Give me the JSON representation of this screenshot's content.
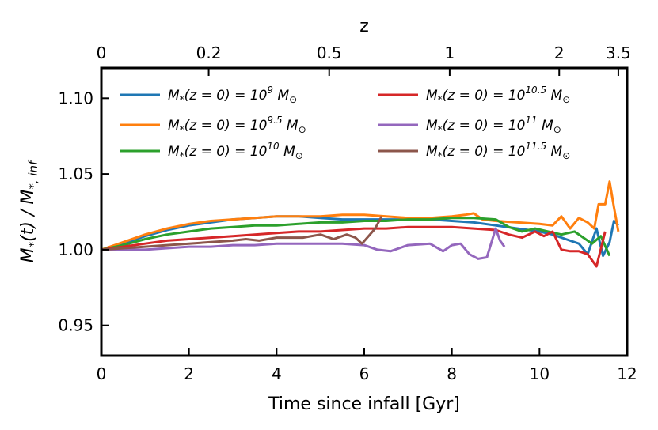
{
  "chart_data": {
    "type": "line",
    "xlabel": "Time since infall [Gyr]",
    "ylabel": "M_*(t) / M_*,inf",
    "top_axis_label": "z",
    "xlim": [
      0,
      12
    ],
    "ylim": [
      0.93,
      1.12
    ],
    "x_ticks": [
      0,
      2,
      4,
      6,
      8,
      10,
      12
    ],
    "x_tick_labels": [
      "0",
      "2",
      "4",
      "6",
      "8",
      "10",
      "12"
    ],
    "y_ticks": [
      0.95,
      1.0,
      1.05,
      1.1
    ],
    "y_tick_labels": [
      "0.95",
      "1.00",
      "1.05",
      "1.10"
    ],
    "top_ticks": [
      {
        "label": "0",
        "t": 0.0
      },
      {
        "label": "0.2",
        "t": 2.45
      },
      {
        "label": "0.5",
        "t": 5.2
      },
      {
        "label": "1",
        "t": 7.95
      },
      {
        "label": "2",
        "t": 10.45
      },
      {
        "label": "3.5",
        "t": 11.8
      }
    ],
    "legend_position": "upper",
    "series": [
      {
        "name": "M*(z=0)=10^9 M☉",
        "legend": {
          "pre": "M",
          "sub": "*",
          "mid": "(z = 0) = 10",
          "exp": "9",
          "post": " M",
          "post_sub": "⊙"
        },
        "color": "#1f77b4",
        "x": [
          0,
          0.5,
          1,
          1.5,
          2,
          2.5,
          3,
          3.5,
          4,
          4.5,
          5,
          5.5,
          6,
          6.5,
          7,
          7.5,
          8,
          8.5,
          9,
          9.5,
          10,
          10.3,
          10.6,
          10.9,
          11.1,
          11.3,
          11.45,
          11.6,
          11.7,
          11.8
        ],
        "y": [
          1.0,
          1.004,
          1.009,
          1.013,
          1.016,
          1.018,
          1.02,
          1.021,
          1.022,
          1.022,
          1.021,
          1.02,
          1.02,
          1.02,
          1.02,
          1.02,
          1.019,
          1.018,
          1.016,
          1.014,
          1.012,
          1.01,
          1.007,
          1.004,
          0.997,
          1.014,
          0.996,
          1.005,
          1.019,
          1.016
        ]
      },
      {
        "name": "M*(z=0)=10^9.5 M☉",
        "legend": {
          "pre": "M",
          "sub": "*",
          "mid": "(z = 0) = 10",
          "exp": "9.5",
          "post": " M",
          "post_sub": "⊙"
        },
        "color": "#ff7f0e",
        "x": [
          0,
          0.5,
          1,
          1.5,
          2,
          2.5,
          3,
          3.5,
          4,
          4.5,
          5,
          5.5,
          6,
          6.5,
          7,
          7.5,
          8,
          8.3,
          8.5,
          8.7,
          9,
          9.5,
          10,
          10.3,
          10.5,
          10.7,
          10.9,
          11.1,
          11.25,
          11.35,
          11.5,
          11.6,
          11.7,
          11.8
        ],
        "y": [
          1.0,
          1.005,
          1.01,
          1.014,
          1.017,
          1.019,
          1.02,
          1.021,
          1.022,
          1.022,
          1.022,
          1.023,
          1.023,
          1.022,
          1.021,
          1.021,
          1.022,
          1.023,
          1.024,
          1.02,
          1.019,
          1.018,
          1.017,
          1.016,
          1.022,
          1.014,
          1.021,
          1.018,
          1.014,
          1.03,
          1.03,
          1.045,
          1.028,
          1.012
        ]
      },
      {
        "name": "M*(z=0)=10^10 M☉",
        "legend": {
          "pre": "M",
          "sub": "*",
          "mid": "(z = 0) = 10",
          "exp": "10",
          "post": " M",
          "post_sub": "⊙"
        },
        "color": "#2ca02c",
        "x": [
          0,
          0.5,
          1,
          1.5,
          2,
          2.5,
          3,
          3.5,
          4,
          4.5,
          5,
          5.5,
          6,
          6.5,
          7,
          7.5,
          8,
          8.5,
          9,
          9.3,
          9.6,
          9.9,
          10.2,
          10.5,
          10.8,
          11.0,
          11.2,
          11.4,
          11.6
        ],
        "y": [
          1.0,
          1.003,
          1.007,
          1.01,
          1.012,
          1.014,
          1.015,
          1.016,
          1.016,
          1.017,
          1.018,
          1.018,
          1.019,
          1.019,
          1.02,
          1.02,
          1.021,
          1.021,
          1.02,
          1.015,
          1.012,
          1.014,
          1.012,
          1.01,
          1.012,
          1.008,
          1.004,
          1.009,
          0.996
        ]
      },
      {
        "name": "M*(z=0)=10^10.5 M☉",
        "legend": {
          "pre": "M",
          "sub": "*",
          "mid": "(z = 0) = 10",
          "exp": "10.5",
          "post": " M",
          "post_sub": "⊙"
        },
        "color": "#d62728",
        "x": [
          0,
          0.5,
          1,
          1.5,
          2,
          2.5,
          3,
          3.5,
          4,
          4.5,
          5,
          5.5,
          6,
          6.5,
          7,
          7.5,
          8,
          8.5,
          9,
          9.3,
          9.6,
          9.9,
          10.1,
          10.3,
          10.5,
          10.7,
          10.9,
          11.1,
          11.3,
          11.5
        ],
        "y": [
          1.0,
          1.002,
          1.004,
          1.006,
          1.007,
          1.008,
          1.009,
          1.01,
          1.011,
          1.012,
          1.012,
          1.013,
          1.014,
          1.014,
          1.015,
          1.015,
          1.015,
          1.014,
          1.013,
          1.01,
          1.008,
          1.012,
          1.009,
          1.012,
          1.0,
          0.999,
          0.999,
          0.997,
          0.989,
          1.012
        ]
      },
      {
        "name": "M*(z=0)=10^11 M☉",
        "legend": {
          "pre": "M",
          "sub": "*",
          "mid": "(z = 0) = 10",
          "exp": "11",
          "post": " M",
          "post_sub": "⊙"
        },
        "color": "#9467bd",
        "x": [
          0,
          0.5,
          1,
          1.5,
          2,
          2.5,
          3,
          3.5,
          4,
          4.3,
          4.6,
          5,
          5.5,
          6,
          6.3,
          6.6,
          7,
          7.5,
          7.8,
          8,
          8.2,
          8.4,
          8.6,
          8.8,
          9.0,
          9.1,
          9.2
        ],
        "y": [
          1.0,
          1.0,
          1.0,
          1.001,
          1.002,
          1.002,
          1.003,
          1.003,
          1.004,
          1.004,
          1.004,
          1.004,
          1.004,
          1.003,
          1.0,
          0.999,
          1.003,
          1.004,
          0.999,
          1.003,
          1.004,
          0.997,
          0.994,
          0.995,
          1.014,
          1.006,
          1.002
        ]
      },
      {
        "name": "M*(z=0)=10^11.5 M☉",
        "legend": {
          "pre": "M",
          "sub": "*",
          "mid": "(z = 0) = 10",
          "exp": "11.5",
          "post": " M",
          "post_sub": "⊙"
        },
        "color": "#8c564b",
        "x": [
          0,
          0.5,
          1,
          1.5,
          2,
          2.5,
          3,
          3.3,
          3.6,
          4,
          4.3,
          4.6,
          5,
          5.3,
          5.6,
          5.8,
          5.95,
          6.1,
          6.25,
          6.4
        ],
        "y": [
          1.0,
          1.001,
          1.002,
          1.003,
          1.004,
          1.005,
          1.006,
          1.007,
          1.006,
          1.008,
          1.008,
          1.008,
          1.01,
          1.007,
          1.01,
          1.008,
          1.004,
          1.009,
          1.014,
          1.022
        ]
      }
    ]
  }
}
